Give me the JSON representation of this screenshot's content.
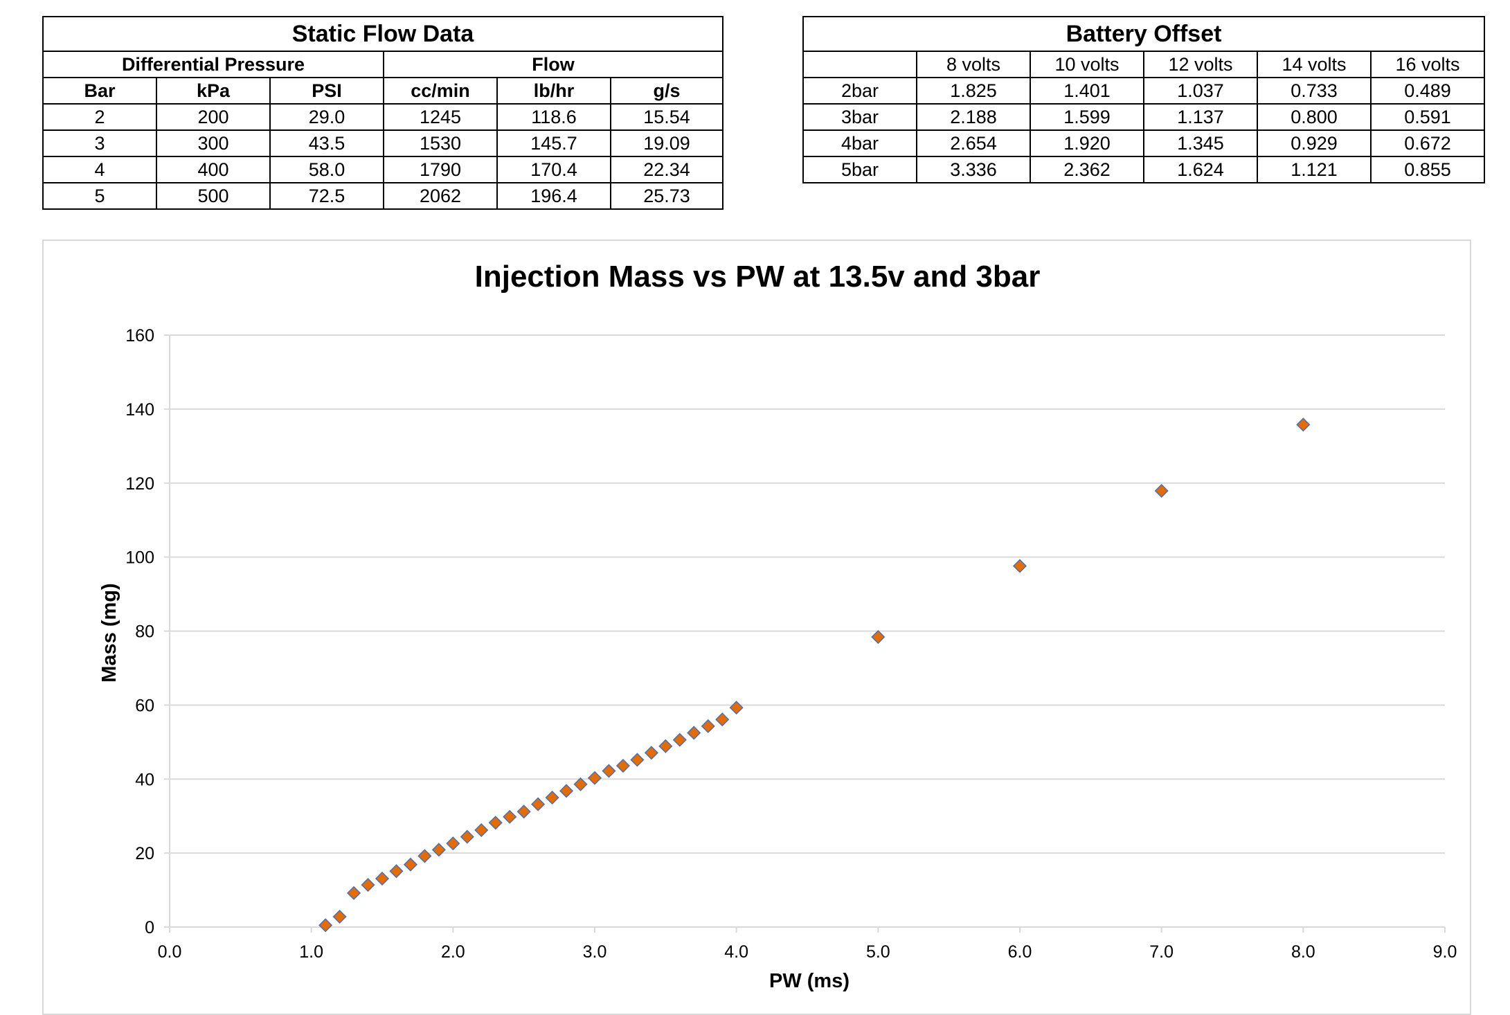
{
  "static_flow": {
    "title": "Static Flow Data",
    "group_headers": [
      "Differential Pressure",
      "Flow"
    ],
    "columns": [
      "Bar",
      "kPa",
      "PSI",
      "cc/min",
      "lb/hr",
      "g/s"
    ],
    "rows": [
      [
        "2",
        "200",
        "29.0",
        "1245",
        "118.6",
        "15.54"
      ],
      [
        "3",
        "300",
        "43.5",
        "1530",
        "145.7",
        "19.09"
      ],
      [
        "4",
        "400",
        "58.0",
        "1790",
        "170.4",
        "22.34"
      ],
      [
        "5",
        "500",
        "72.5",
        "2062",
        "196.4",
        "25.73"
      ]
    ]
  },
  "battery_offset": {
    "title": "Battery Offset",
    "columns": [
      "",
      "8 volts",
      "10 volts",
      "12 volts",
      "14 volts",
      "16 volts"
    ],
    "rows": [
      [
        "2bar",
        "1.825",
        "1.401",
        "1.037",
        "0.733",
        "0.489"
      ],
      [
        "3bar",
        "2.188",
        "1.599",
        "1.137",
        "0.800",
        "0.591"
      ],
      [
        "4bar",
        "2.654",
        "1.920",
        "1.345",
        "0.929",
        "0.672"
      ],
      [
        "5bar",
        "3.336",
        "2.362",
        "1.624",
        "1.121",
        "0.855"
      ]
    ]
  },
  "chart_data": {
    "type": "scatter",
    "title": "Injection Mass vs PW at 13.5v and 3bar",
    "xlabel": "PW (ms)",
    "ylabel": "Mass (mg)",
    "xlim": [
      0,
      9
    ],
    "ylim": [
      0,
      160
    ],
    "xticks": [
      "0.0",
      "1.0",
      "2.0",
      "3.0",
      "4.0",
      "5.0",
      "6.0",
      "7.0",
      "8.0",
      "9.0"
    ],
    "yticks": [
      "0",
      "20",
      "40",
      "60",
      "80",
      "100",
      "120",
      "140",
      "160"
    ],
    "grid": "horizontal",
    "marker": "diamond",
    "marker_color": "#e36c0a",
    "marker_edge_color": "#4f6fa8",
    "grid_color": "#d9d9d9",
    "series": [
      {
        "points": [
          [
            1.1,
            0.5
          ],
          [
            1.2,
            2.8
          ],
          [
            1.3,
            9.2
          ],
          [
            1.4,
            11.4
          ],
          [
            1.5,
            13.1
          ],
          [
            1.6,
            15.1
          ],
          [
            1.7,
            16.9
          ],
          [
            1.8,
            19.2
          ],
          [
            1.9,
            20.9
          ],
          [
            2.0,
            22.6
          ],
          [
            2.1,
            24.4
          ],
          [
            2.2,
            26.2
          ],
          [
            2.3,
            28.2
          ],
          [
            2.4,
            29.8
          ],
          [
            2.5,
            31.2
          ],
          [
            2.6,
            33.2
          ],
          [
            2.7,
            35.0
          ],
          [
            2.8,
            36.8
          ],
          [
            2.9,
            38.6
          ],
          [
            3.0,
            40.3
          ],
          [
            3.1,
            42.2
          ],
          [
            3.2,
            43.6
          ],
          [
            3.3,
            45.2
          ],
          [
            3.4,
            47.1
          ],
          [
            3.5,
            48.9
          ],
          [
            3.6,
            50.6
          ],
          [
            3.7,
            52.5
          ],
          [
            3.8,
            54.3
          ],
          [
            3.9,
            56.1
          ],
          [
            4.0,
            59.3
          ],
          [
            5.0,
            78.4
          ],
          [
            6.0,
            97.6
          ],
          [
            7.0,
            117.9
          ],
          [
            8.0,
            135.8
          ]
        ]
      }
    ]
  }
}
